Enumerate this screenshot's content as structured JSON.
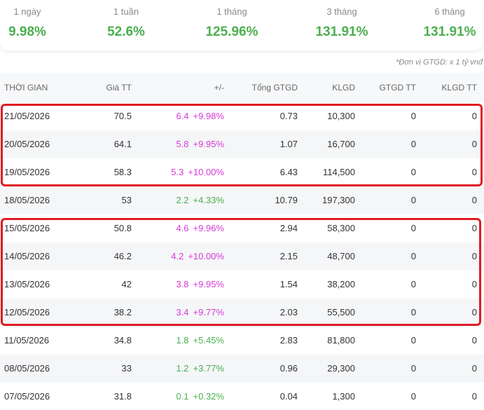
{
  "performance": [
    {
      "label": "1 ngày",
      "value": "9.98%"
    },
    {
      "label": "1 tuần",
      "value": "52.6%"
    },
    {
      "label": "1 tháng",
      "value": "125.96%"
    },
    {
      "label": "3 tháng",
      "value": "131.91%"
    },
    {
      "label": "6 tháng",
      "value": "131.91%"
    }
  ],
  "unit_note": "*Đơn vị GTGD: x 1 tỷ vnđ",
  "colors": {
    "up": "#4caf50",
    "ceiling": "#d63ad6",
    "highlight": "#e01b24"
  },
  "table": {
    "headers": {
      "date": "THỜI GIAN",
      "price": "Giá TT",
      "change": "+/-",
      "gtgd": "Tổng GTGD",
      "klgd": "KLGD",
      "gtgd_tt": "GTGD TT",
      "klgd_tt": "KLGD TT"
    },
    "rows": [
      {
        "date": "21/05/2026",
        "price": "70.5",
        "chg": "6.4",
        "pct": "+9.98%",
        "status": "ceiling",
        "gtgd": "0.73",
        "klgd": "10,300",
        "gtgd_tt": "0",
        "klgd_tt": "0"
      },
      {
        "date": "20/05/2026",
        "price": "64.1",
        "chg": "5.8",
        "pct": "+9.95%",
        "status": "ceiling",
        "gtgd": "1.07",
        "klgd": "16,700",
        "gtgd_tt": "0",
        "klgd_tt": "0"
      },
      {
        "date": "19/05/2026",
        "price": "58.3",
        "chg": "5.3",
        "pct": "+10.00%",
        "status": "ceiling",
        "gtgd": "6.43",
        "klgd": "114,500",
        "gtgd_tt": "0",
        "klgd_tt": "0"
      },
      {
        "date": "18/05/2026",
        "price": "53",
        "chg": "2.2",
        "pct": "+4.33%",
        "status": "up",
        "gtgd": "10.79",
        "klgd": "197,300",
        "gtgd_tt": "0",
        "klgd_tt": "0"
      },
      {
        "date": "15/05/2026",
        "price": "50.8",
        "chg": "4.6",
        "pct": "+9.96%",
        "status": "ceiling",
        "gtgd": "2.94",
        "klgd": "58,300",
        "gtgd_tt": "0",
        "klgd_tt": "0"
      },
      {
        "date": "14/05/2026",
        "price": "46.2",
        "chg": "4.2",
        "pct": "+10.00%",
        "status": "ceiling",
        "gtgd": "2.15",
        "klgd": "48,700",
        "gtgd_tt": "0",
        "klgd_tt": "0"
      },
      {
        "date": "13/05/2026",
        "price": "42",
        "chg": "3.8",
        "pct": "+9.95%",
        "status": "ceiling",
        "gtgd": "1.54",
        "klgd": "38,200",
        "gtgd_tt": "0",
        "klgd_tt": "0"
      },
      {
        "date": "12/05/2026",
        "price": "38.2",
        "chg": "3.4",
        "pct": "+9.77%",
        "status": "ceiling",
        "gtgd": "2.03",
        "klgd": "55,500",
        "gtgd_tt": "0",
        "klgd_tt": "0"
      },
      {
        "date": "11/05/2026",
        "price": "34.8",
        "chg": "1.8",
        "pct": "+5.45%",
        "status": "up",
        "gtgd": "2.83",
        "klgd": "81,800",
        "gtgd_tt": "0",
        "klgd_tt": "0"
      },
      {
        "date": "08/05/2026",
        "price": "33",
        "chg": "1.2",
        "pct": "+3.77%",
        "status": "up",
        "gtgd": "0.96",
        "klgd": "29,300",
        "gtgd_tt": "0",
        "klgd_tt": "0"
      },
      {
        "date": "07/05/2026",
        "price": "31.8",
        "chg": "0.1",
        "pct": "+0.32%",
        "status": "up",
        "gtgd": "0.04",
        "klgd": "1,300",
        "gtgd_tt": "0",
        "klgd_tt": "0"
      }
    ]
  }
}
